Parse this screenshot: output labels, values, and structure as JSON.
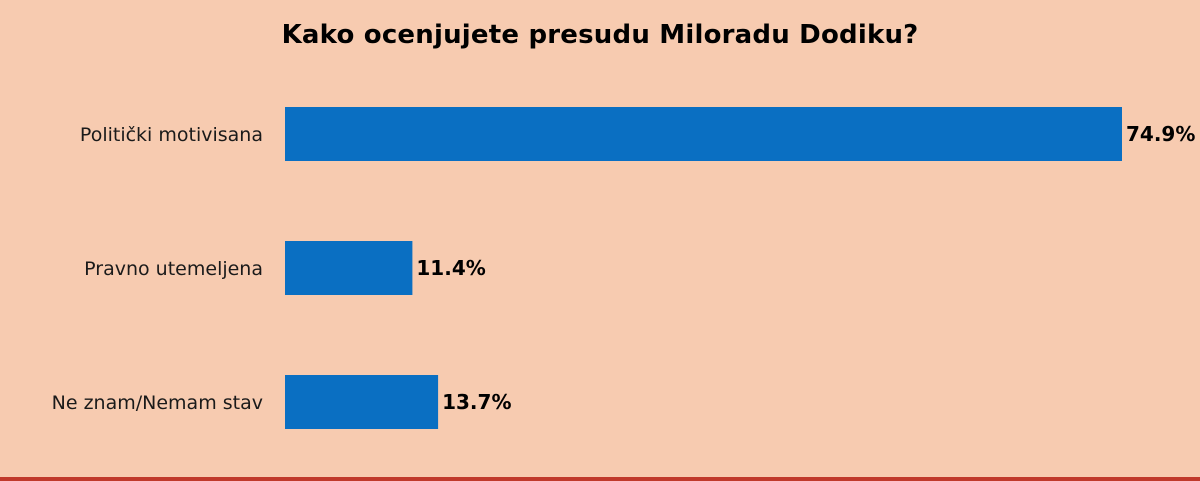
{
  "title": "Kako ocenjujete presudu Miloradu Dodiku?",
  "colors": {
    "background": "#f7cbb0",
    "bar": "#0a6fc2",
    "bottom_border": "#c0392b"
  },
  "chart_data": {
    "type": "bar",
    "orientation": "horizontal",
    "title": "Kako ocenjujete presudu Miloradu Dodiku?",
    "categories": [
      "Politički motivisana",
      "Pravno utemeljena",
      "Ne znam/Nemam stav"
    ],
    "values": [
      74.9,
      11.4,
      13.7
    ],
    "value_labels": [
      "74.9%",
      "11.4%",
      "13.7%"
    ],
    "unit": "%",
    "xlim": [
      0,
      74.9
    ],
    "grid": false,
    "legend": "none",
    "axes_visible": false
  }
}
